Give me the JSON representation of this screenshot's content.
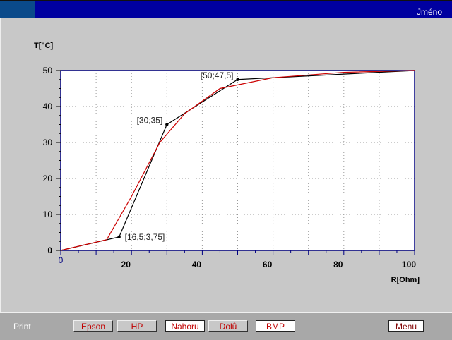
{
  "header": {
    "user": "Jméno"
  },
  "bottom": {
    "print_label": "Print",
    "buttons": [
      {
        "label": "Epson",
        "color": "#c00000"
      },
      {
        "label": "HP",
        "color": "#c00000"
      },
      {
        "label": "Nahoru",
        "color": "#c00000"
      },
      {
        "label": "Dolů",
        "color": "#c00000"
      },
      {
        "label": "BMP",
        "color": "#c00000"
      },
      {
        "label": "Menu",
        "color": "#800000"
      }
    ]
  },
  "chart_data": {
    "type": "line",
    "title": "",
    "xlabel": "R[Ohm]",
    "ylabel": "T[\"C]",
    "xlim": [
      0,
      100
    ],
    "ylim": [
      0,
      50
    ],
    "grid": true,
    "xticks": [
      0,
      20,
      40,
      60,
      80,
      100
    ],
    "yticks": [
      0,
      10,
      20,
      30,
      40,
      50
    ],
    "series": [
      {
        "color": "#000000",
        "x": [
          0,
          16.5,
          30,
          50,
          100
        ],
        "y": [
          0,
          3.75,
          35,
          47.5,
          50
        ]
      },
      {
        "color": "#cc0000",
        "x": [
          0,
          13,
          20,
          28,
          35,
          45,
          60,
          80,
          100
        ],
        "y": [
          0,
          3,
          15,
          30,
          38,
          45,
          48,
          49.5,
          50
        ]
      }
    ],
    "annotations": [
      {
        "label": "[16,5;3,75]",
        "x": 16.5,
        "y": 3.75
      },
      {
        "label": "[30;35]",
        "x": 30,
        "y": 35
      },
      {
        "label": "[50;47,5]",
        "x": 50,
        "y": 47.5
      }
    ]
  }
}
